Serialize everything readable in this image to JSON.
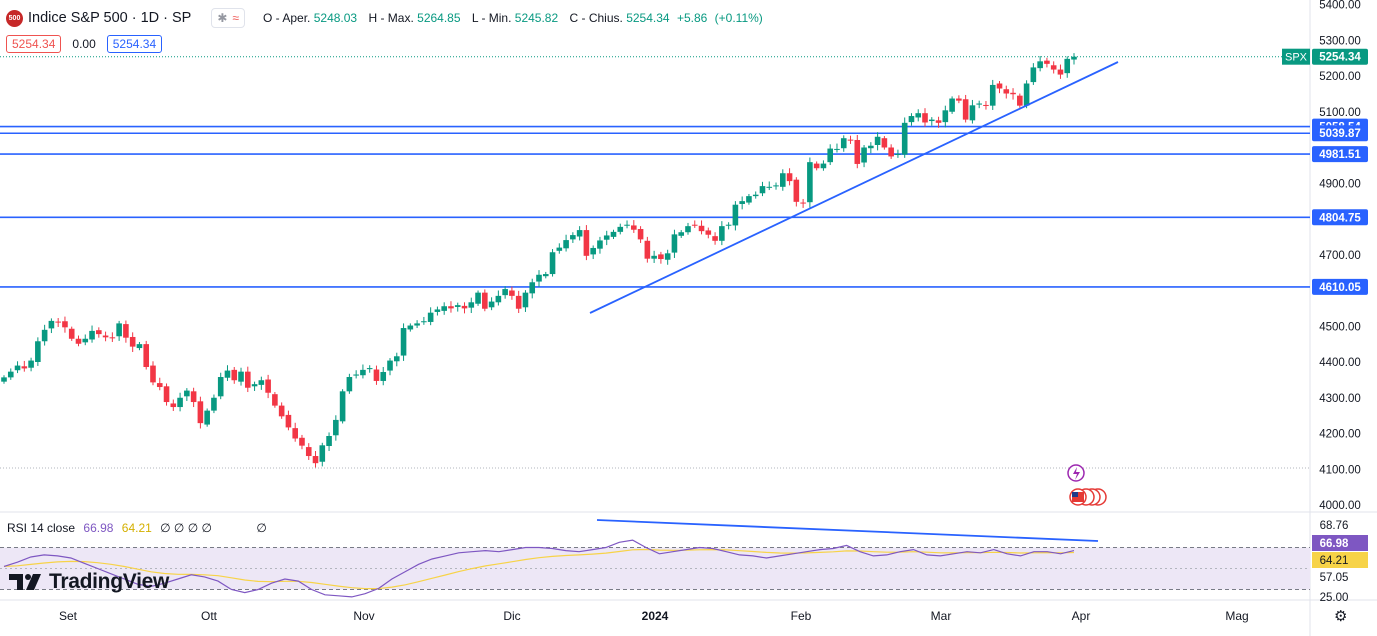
{
  "header": {
    "logo_text": "500",
    "symbol": "Indice S&P 500 · 1D · SP",
    "indicator_glyph_a": "✱",
    "indicator_glyph_b": "≈",
    "ohlc": {
      "open_label": "O - Aper.",
      "open": "5248.03",
      "high_label": "H - Max.",
      "high": "5264.85",
      "low_label": "L - Min.",
      "low": "5245.82",
      "close_label": "C - Chius.",
      "close": "5254.34",
      "change": "+5.86",
      "change_pct": "(+0.11%)"
    }
  },
  "trade_boxes": {
    "sell": "5254.34",
    "spread": "0.00",
    "buy": "5254.34"
  },
  "rsi_header": {
    "label": "RSI 14 close",
    "rsi": "66.98",
    "ma": "64.21",
    "extra": "∅ ∅ ∅ ∅",
    "extra2": "∅"
  },
  "watermark": {
    "text": "TradingView"
  },
  "colors": {
    "up": "#089981",
    "down": "#f23645",
    "line": "#2962ff",
    "rsi": "#7e57c2",
    "rsi_ma": "#f7d348",
    "rsi_bg": "#ede7f6",
    "price_tag": "#089981"
  },
  "chart_data": [
    {
      "type": "candlestick",
      "title": "Indice S&P 500 · 1D · SP",
      "x_axis": {
        "ticks": [
          "Set",
          "Ott",
          "Nov",
          "Dic",
          "2024",
          "Feb",
          "Mar",
          "Apr",
          "Mag"
        ]
      },
      "y_axis": {
        "ylim": [
          3990,
          5400
        ],
        "ticks": [
          "5400.00",
          "5300.00",
          "5200.00",
          "5100.00",
          "4900.00",
          "4700.00",
          "4500.00",
          "4400.00",
          "4300.00",
          "4200.00",
          "4100.00",
          "4000.00"
        ]
      },
      "series_close": [
        4357,
        4373,
        4390,
        4382,
        4404,
        4458,
        4490,
        4515,
        4512,
        4497,
        4465,
        4451,
        4465,
        4487,
        4478,
        4469,
        4468,
        4508,
        4468,
        4443,
        4450,
        4386,
        4343,
        4330,
        4288,
        4274,
        4300,
        4320,
        4288,
        4229,
        4264,
        4300,
        4358,
        4376,
        4349,
        4373,
        4328,
        4338,
        4349,
        4314,
        4278,
        4248,
        4217,
        4186,
        4166,
        4137,
        4117,
        4167,
        4193,
        4238,
        4318,
        4358,
        4365,
        4378,
        4383,
        4347,
        4372,
        4404,
        4416,
        4495,
        4502,
        4508,
        4514,
        4538,
        4547,
        4556,
        4550,
        4559,
        4550,
        4567,
        4594,
        4549,
        4569,
        4585,
        4604,
        4585,
        4549,
        4594,
        4623,
        4644,
        4646,
        4707,
        4720,
        4741,
        4755,
        4769,
        4697,
        4719,
        4740,
        4754,
        4764,
        4778,
        4784,
        4770,
        4743,
        4689,
        4697,
        4688,
        4704,
        4757,
        4763,
        4780,
        4783,
        4766,
        4756,
        4739,
        4780,
        4784,
        4840,
        4850,
        4864,
        4868,
        4892,
        4890,
        4894,
        4928,
        4906,
        4848,
        4845,
        4959,
        4942,
        4955,
        4997,
        4996,
        5026,
        5021,
        4954,
        5000,
        5005,
        5030,
        5000,
        4975,
        4982,
        5069,
        5088,
        5096,
        5070,
        5078,
        5069,
        5104,
        5137,
        5131,
        5078,
        5118,
        5123,
        5117,
        5175,
        5165,
        5151,
        5149,
        5117,
        5179,
        5224,
        5241,
        5234,
        5218,
        5204,
        5248,
        5254
      ],
      "current_price": "5254.34",
      "price_tag_label": "SPX",
      "horizontal_levels": [
        "5058.54",
        "5039.87",
        "4981.51",
        "4804.75",
        "4610.05"
      ],
      "trendline": {
        "from": [
          4535,
          "Dic"
        ],
        "to": [
          5240,
          "Apr"
        ]
      }
    },
    {
      "type": "line",
      "title": "RSI 14 close",
      "y_axis": {
        "ticks": [
          "68.76",
          "57.05",
          "25.00"
        ]
      },
      "values_labels": {
        "rsi": "66.98",
        "ma": "64.21"
      },
      "approx_rsi": [
        52,
        56,
        61,
        63,
        62,
        60,
        55,
        50,
        45,
        40,
        35,
        33,
        36,
        40,
        44,
        42,
        38,
        30,
        27,
        30,
        36,
        40,
        38,
        30,
        25,
        24,
        23,
        26,
        31,
        40,
        47,
        54,
        59,
        62,
        65,
        66,
        67,
        66,
        68,
        70,
        70,
        69,
        67,
        66,
        68,
        70,
        75,
        77,
        70,
        64,
        66,
        68,
        70,
        69,
        66,
        63,
        62,
        60,
        62,
        64,
        66,
        68,
        69,
        72,
        66,
        62,
        63,
        66,
        68,
        63,
        62,
        64,
        66,
        65,
        68,
        64,
        62,
        66,
        66,
        64,
        67
      ]
    }
  ]
}
